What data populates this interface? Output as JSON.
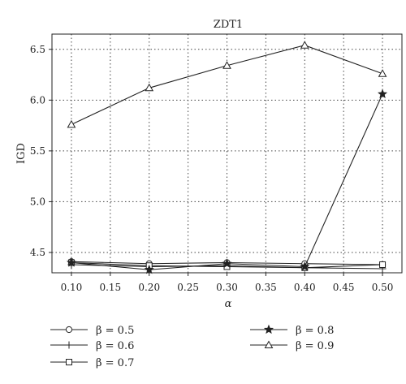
{
  "chart_data": {
    "type": "line",
    "title": "ZDT1",
    "xlabel": "α",
    "ylabel": "IGD",
    "x": [
      0.1,
      0.2,
      0.3,
      0.4,
      0.5
    ],
    "xticks": [
      "0.10",
      "0.15",
      "0.20",
      "0.25",
      "0.30",
      "0.35",
      "0.40",
      "0.45",
      "0.50"
    ],
    "yticks": [
      "4.5",
      "5.0",
      "5.5",
      "6.0",
      "6.5"
    ],
    "xlim": [
      0.075,
      0.525
    ],
    "ylim": [
      4.3,
      6.65
    ],
    "grid": true,
    "legend_position": "bottom",
    "series": [
      {
        "name": "β = 0.5",
        "marker": "circle",
        "values": [
          4.41,
          4.39,
          4.4,
          4.39,
          4.38
        ]
      },
      {
        "name": "β = 0.6",
        "marker": "plus",
        "values": [
          4.38,
          4.36,
          4.37,
          4.35,
          4.34
        ]
      },
      {
        "name": "β = 0.7",
        "marker": "square",
        "values": [
          4.4,
          4.37,
          4.36,
          4.35,
          4.38
        ]
      },
      {
        "name": "β = 0.8",
        "marker": "star",
        "values": [
          4.4,
          4.33,
          4.39,
          4.36,
          6.06
        ]
      },
      {
        "name": "β = 0.9",
        "marker": "triangle",
        "values": [
          5.76,
          6.12,
          6.34,
          6.54,
          6.26
        ]
      }
    ]
  }
}
